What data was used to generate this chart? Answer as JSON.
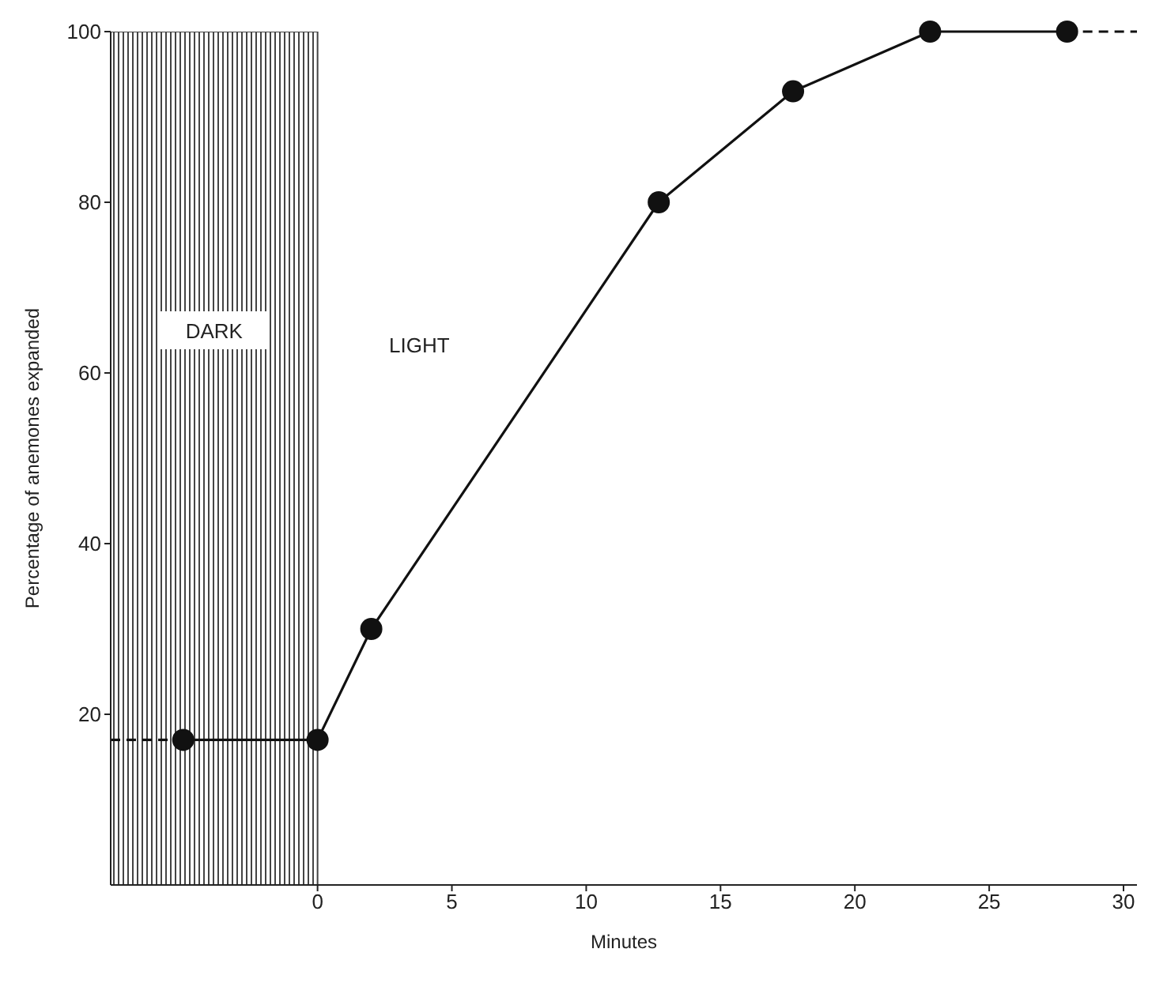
{
  "chart_data": {
    "type": "line",
    "xlabel": "Minutes",
    "ylabel": "Percentage of anemones expanded",
    "xlim": [
      -7.7,
      30.5
    ],
    "xticks": [
      0,
      5,
      10,
      15,
      20,
      25,
      30
    ],
    "ylim": [
      0,
      100
    ],
    "yticks": [
      20,
      40,
      60,
      80,
      100
    ],
    "grid": false,
    "marker": "circle",
    "line_style": "solid",
    "series": [
      {
        "color": "#111111",
        "x": [
          -5,
          0,
          2,
          12.7,
          17.7,
          22.8,
          27.9
        ],
        "values": [
          17,
          17,
          30,
          80,
          93,
          100,
          100
        ]
      },
      {
        "color": "#111111",
        "x": [
          -7.7,
          -5
        ],
        "values": [
          17,
          17
        ],
        "line_style": "dashed",
        "marker": "none"
      },
      {
        "color": "#111111",
        "x": [
          27.9,
          30.5
        ],
        "values": [
          100,
          100
        ],
        "line_style": "dashed",
        "marker": "none"
      }
    ],
    "bands": [
      {
        "axis": "x",
        "from": -7.7,
        "to": 0,
        "label": "DARK",
        "color": "#444444"
      }
    ],
    "annotations": [
      "LIGHT"
    ]
  }
}
